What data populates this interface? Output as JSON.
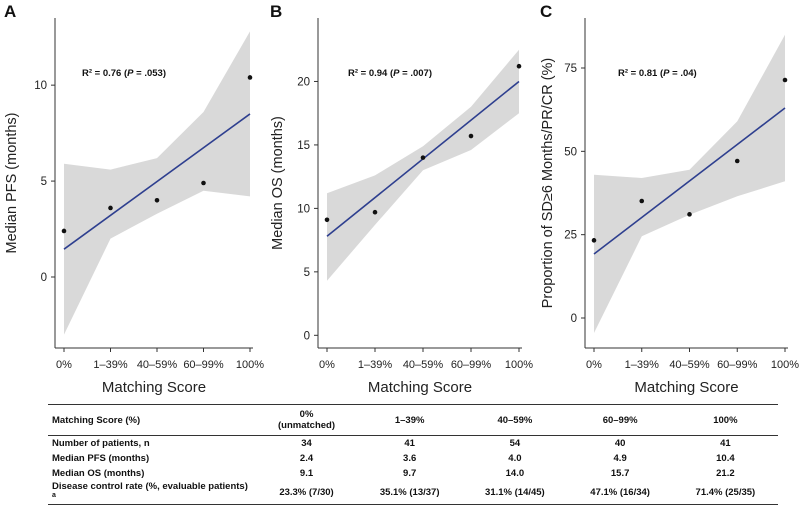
{
  "chart_data": [
    {
      "panel": "A",
      "type": "scatter",
      "categories": [
        "0%",
        "1–39%",
        "40–59%",
        "60–99%",
        "100%"
      ],
      "values": [
        2.4,
        3.6,
        4.0,
        4.9,
        10.4
      ],
      "fit": [
        1.45,
        8.5
      ],
      "band_upper": [
        5.9,
        5.6,
        6.2,
        8.6,
        12.8
      ],
      "band_lower": [
        -3.0,
        2.0,
        3.3,
        4.5,
        4.2
      ],
      "ylabel": "Median PFS (months)",
      "xlabel": "Matching Score",
      "yticks": [
        0,
        5,
        10
      ],
      "ylim": [
        -3.7,
        13.5
      ],
      "annotation": {
        "r2": "R² = 0.76",
        "p_label": "P",
        "p_value": " = .053"
      }
    },
    {
      "panel": "B",
      "type": "scatter",
      "categories": [
        "0%",
        "1–39%",
        "40–59%",
        "60–99%",
        "100%"
      ],
      "values": [
        9.1,
        9.7,
        14.0,
        15.7,
        21.2
      ],
      "fit": [
        7.8,
        20.0
      ],
      "band_upper": [
        11.2,
        12.6,
        14.9,
        18.0,
        22.5
      ],
      "band_lower": [
        4.3,
        8.7,
        13.0,
        14.6,
        17.5
      ],
      "ylabel": "Median OS (months)",
      "xlabel": "Matching Score",
      "yticks": [
        0,
        5,
        10,
        15,
        20
      ],
      "ylim": [
        -1.0,
        25.0
      ],
      "annotation": {
        "r2": "R² = 0.94",
        "p_label": "P",
        "p_value": " = .007"
      }
    },
    {
      "panel": "C",
      "type": "scatter",
      "categories": [
        "0%",
        "1–39%",
        "40–59%",
        "60–99%",
        "100%"
      ],
      "values": [
        23.3,
        35.1,
        31.1,
        47.1,
        71.4
      ],
      "fit": [
        19.2,
        63.0
      ],
      "band_upper": [
        43.0,
        42.0,
        44.5,
        59.0,
        85.0
      ],
      "band_lower": [
        -4.5,
        24.5,
        31.0,
        36.5,
        41.0
      ],
      "ylabel": "Proportion of SD≥6 Months/PR/CR (%)",
      "xlabel": "Matching Score",
      "yticks": [
        0,
        25,
        50,
        75
      ],
      "ylim": [
        -9.0,
        90.0
      ],
      "annotation": {
        "r2": "R² = 0.81",
        "p_label": "P",
        "p_value": " = .04"
      }
    }
  ],
  "table": {
    "header": [
      "Matching Score (%)",
      "0%\n(unmatched)",
      "1–39%",
      "40–59%",
      "60–99%",
      "100%"
    ],
    "header_first_line": "0%",
    "header_second_line": "(unmatched)",
    "rows": [
      {
        "label": "Number of patients, n",
        "cells": [
          "34",
          "41",
          "54",
          "40",
          "41"
        ]
      },
      {
        "label": "Median PFS (months)",
        "cells": [
          "2.4",
          "3.6",
          "4.0",
          "4.9",
          "10.4"
        ]
      },
      {
        "label": "Median OS (months)",
        "cells": [
          "9.1",
          "9.7",
          "14.0",
          "15.7",
          "21.2"
        ]
      },
      {
        "label": "Disease control rate (%, evaluable patients)",
        "footnote": "a",
        "cells": [
          "23.3% (7/30)",
          "35.1% (13/37)",
          "31.1% (14/45)",
          "47.1% (16/34)",
          "71.4% (25/35)"
        ]
      }
    ]
  },
  "colors": {
    "band": "#d9d9d9",
    "fit_line": "#2e3f8f",
    "points": "#111111",
    "axis": "#333333"
  }
}
